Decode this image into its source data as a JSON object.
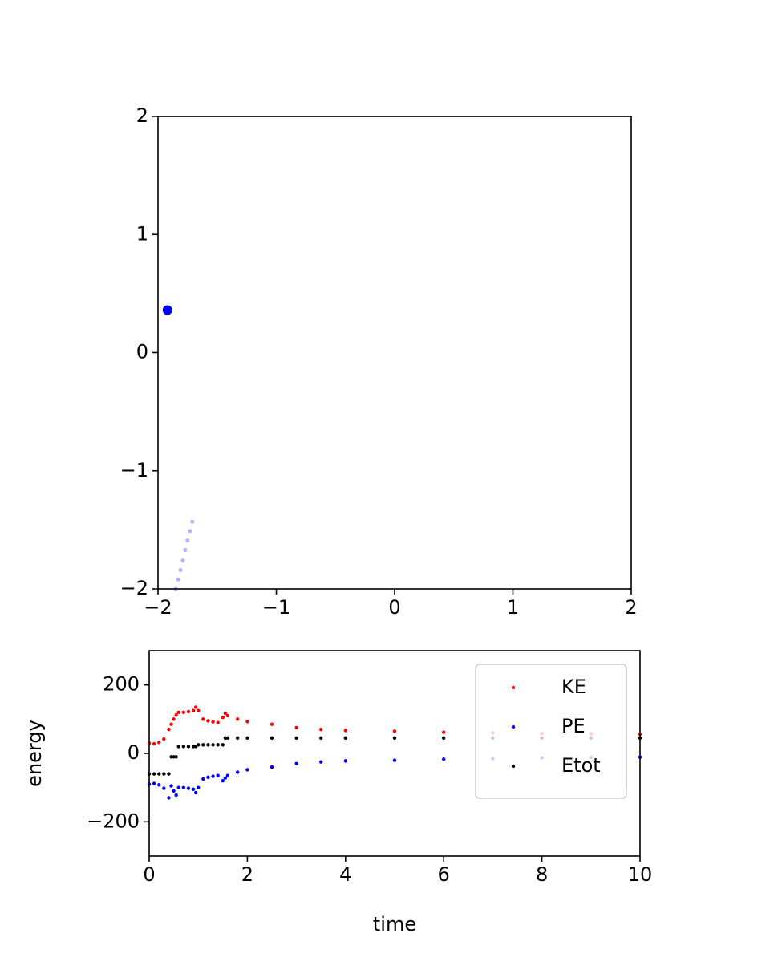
{
  "chart_data": [
    {
      "type": "scatter",
      "xlim": [
        -2,
        2
      ],
      "ylim": [
        -2,
        2
      ],
      "xticks": [
        {
          "value": -2,
          "label": "−2"
        },
        {
          "value": -1,
          "label": "−1"
        },
        0,
        1,
        2
      ],
      "yticks": [
        {
          "value": -2,
          "label": "−2"
        },
        {
          "value": -1,
          "label": "−1"
        },
        0,
        1,
        2
      ],
      "series": [
        {
          "color": "#b4b4ff",
          "x": [
            -1.85,
            -1.83,
            -1.81,
            -1.79,
            -1.77,
            -1.75,
            -1.73,
            -1.71
          ],
          "values": [
            -2,
            -1.92,
            -1.84,
            -1.76,
            -1.67,
            -1.59,
            -1.51,
            -1.43
          ]
        },
        {
          "color": "#0000ff",
          "x": [
            -1.92
          ],
          "values": [
            0.36
          ]
        }
      ]
    },
    {
      "type": "scatter",
      "xlabel": "time",
      "ylabel": "energy",
      "xlim": [
        0,
        10
      ],
      "ylim": [
        -300,
        300
      ],
      "xticks": [
        0,
        2,
        4,
        6,
        8,
        10
      ],
      "yticks": [
        {
          "value": -200,
          "label": "−200"
        },
        0,
        200
      ],
      "legend": "upper right",
      "x": [
        0,
        0.1,
        0.2,
        0.3,
        0.4,
        0.45,
        0.5,
        0.55,
        0.6,
        0.7,
        0.8,
        0.9,
        0.95,
        1.0,
        1.1,
        1.2,
        1.3,
        1.4,
        1.5,
        1.55,
        1.6,
        1.8,
        2,
        2.5,
        3,
        3.5,
        4,
        5,
        6,
        7,
        8,
        9,
        10
      ],
      "series": [
        {
          "name": "KE",
          "color": "#ff0000",
          "values": [
            30,
            28,
            32,
            42,
            70,
            85,
            100,
            112,
            120,
            120,
            122,
            125,
            135,
            125,
            100,
            95,
            92,
            90,
            105,
            117,
            110,
            100,
            93,
            85,
            75,
            70,
            67,
            65,
            62,
            60,
            58,
            57,
            56
          ]
        },
        {
          "name": "PE",
          "color": "#0000ff",
          "values": [
            -90,
            -88,
            -92,
            -102,
            -130,
            -95,
            -110,
            -122,
            -100,
            -100,
            -102,
            -105,
            -115,
            -100,
            -75,
            -70,
            -67,
            -65,
            -80,
            -72,
            -65,
            -55,
            -48,
            -40,
            -30,
            -25,
            -22,
            -20,
            -17,
            -15,
            -13,
            -12,
            -11
          ]
        },
        {
          "name": "Etot",
          "color": "#000000",
          "values": [
            -60,
            -60,
            -60,
            -60,
            -60,
            -10,
            -10,
            -10,
            20,
            20,
            20,
            20,
            20,
            25,
            25,
            25,
            25,
            25,
            25,
            45,
            45,
            45,
            45,
            45,
            45,
            45,
            45,
            45,
            45,
            45,
            45,
            45,
            45
          ]
        }
      ]
    }
  ]
}
